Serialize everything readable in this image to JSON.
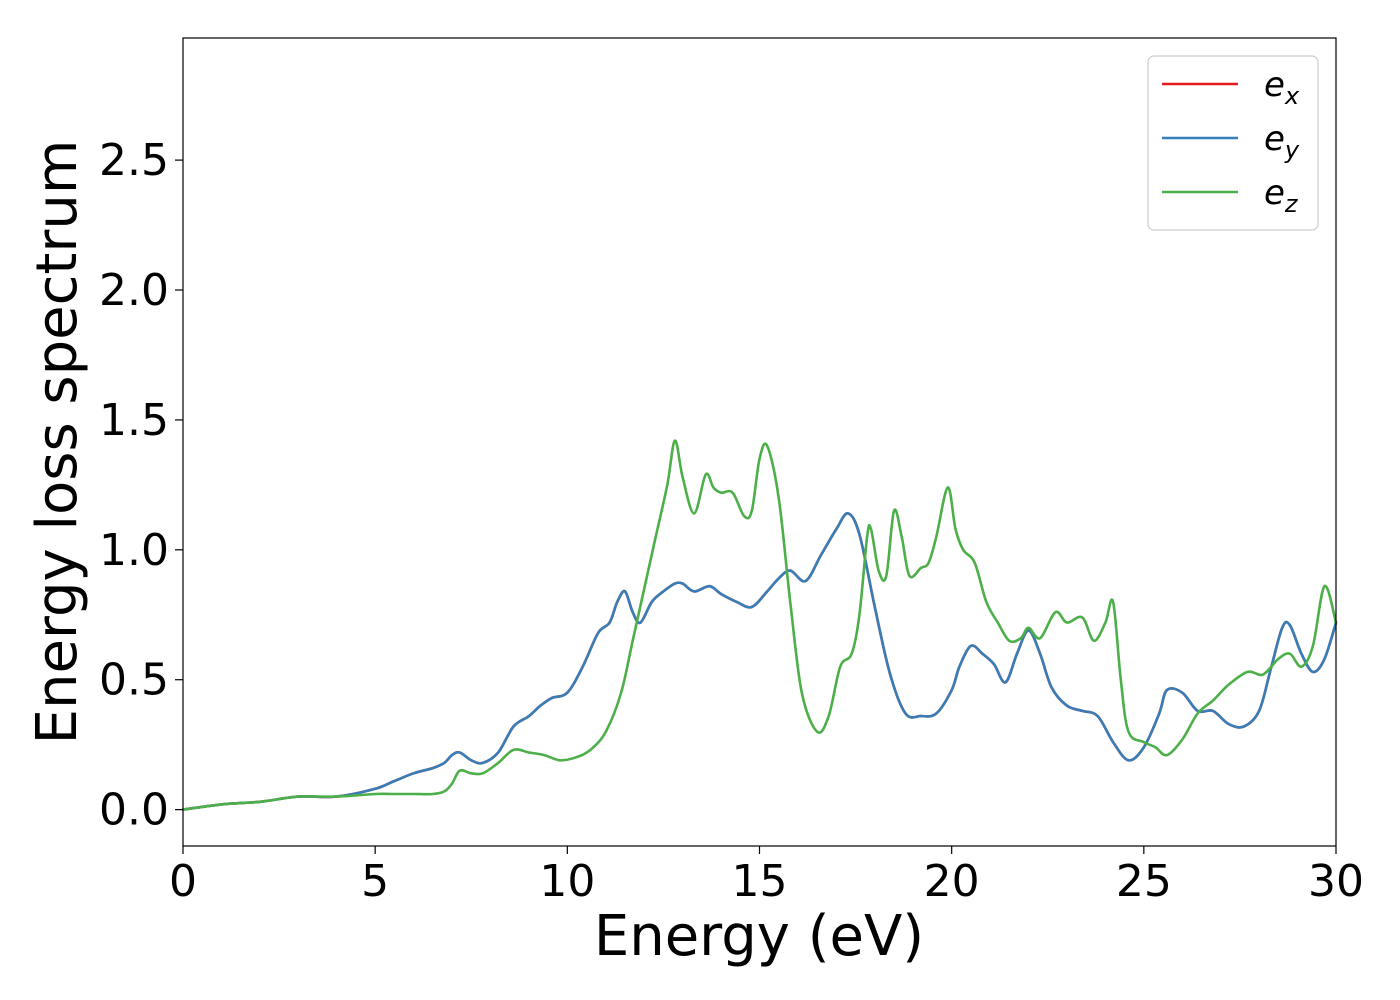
{
  "chart_data": {
    "type": "line",
    "title": "",
    "xlabel": "Energy (eV)",
    "ylabel": "Energy loss spectrum",
    "xlim": [
      0,
      30
    ],
    "ylim": [
      -0.14,
      2.97
    ],
    "xticks": [
      0,
      5,
      10,
      15,
      20,
      25,
      30
    ],
    "xtick_labels": [
      "0",
      "5",
      "10",
      "15",
      "20",
      "25",
      "30"
    ],
    "yticks": [
      0.0,
      0.5,
      1.0,
      1.5,
      2.0,
      2.5
    ],
    "ytick_labels": [
      "0.0",
      "0.5",
      "1.0",
      "1.5",
      "2.0",
      "2.5"
    ],
    "grid": false,
    "legend_position": "top-right",
    "legend": [
      {
        "base": "e",
        "sub": "x",
        "color": "#e41a1c"
      },
      {
        "base": "e",
        "sub": "y",
        "color": "#377eb8"
      },
      {
        "base": "e",
        "sub": "z",
        "color": "#4daf4a"
      }
    ],
    "series": [
      {
        "name": "e_x",
        "color": "#e41a1c",
        "x": [
          0,
          1,
          2,
          3,
          4,
          5,
          5.5,
          6,
          6.5,
          6.8,
          7.0,
          7.2,
          7.5,
          7.8,
          8.2,
          8.6,
          9.0,
          9.3,
          9.6,
          10.0,
          10.4,
          10.8,
          11.1,
          11.3,
          11.5,
          11.7,
          11.9,
          12.2,
          12.5,
          12.8,
          13.0,
          13.3,
          13.7,
          14.0,
          14.4,
          14.8,
          15.2,
          15.5,
          15.8,
          16.2,
          16.6,
          17.0,
          17.3,
          17.6,
          18.0,
          18.4,
          18.8,
          19.2,
          19.6,
          20.0,
          20.2,
          20.5,
          20.8,
          21.1,
          21.4,
          21.7,
          22.0,
          22.3,
          22.6,
          23.0,
          23.4,
          23.8,
          24.2,
          24.6,
          25.0,
          25.4,
          25.6,
          26.0,
          26.4,
          26.8,
          27.2,
          27.6,
          28.0,
          28.3,
          28.6,
          28.8,
          29.1,
          29.4,
          29.7,
          30.0
        ],
        "y": [
          0.0,
          0.02,
          0.03,
          0.05,
          0.05,
          0.08,
          0.11,
          0.14,
          0.16,
          0.18,
          0.21,
          0.22,
          0.19,
          0.18,
          0.22,
          0.32,
          0.36,
          0.4,
          0.43,
          0.45,
          0.55,
          0.68,
          0.72,
          0.8,
          0.84,
          0.76,
          0.72,
          0.8,
          0.84,
          0.87,
          0.87,
          0.84,
          0.86,
          0.83,
          0.8,
          0.78,
          0.84,
          0.89,
          0.92,
          0.88,
          0.98,
          1.08,
          1.14,
          1.06,
          0.78,
          0.52,
          0.37,
          0.36,
          0.37,
          0.46,
          0.55,
          0.63,
          0.6,
          0.56,
          0.49,
          0.6,
          0.69,
          0.6,
          0.47,
          0.4,
          0.38,
          0.36,
          0.26,
          0.19,
          0.24,
          0.37,
          0.46,
          0.45,
          0.38,
          0.38,
          0.33,
          0.32,
          0.38,
          0.54,
          0.7,
          0.71,
          0.6,
          0.53,
          0.58,
          0.72
        ]
      },
      {
        "name": "e_y",
        "color": "#377eb8",
        "x": [
          0,
          1,
          2,
          3,
          4,
          5,
          5.5,
          6,
          6.5,
          6.8,
          7.0,
          7.2,
          7.5,
          7.8,
          8.2,
          8.6,
          9.0,
          9.3,
          9.6,
          10.0,
          10.4,
          10.8,
          11.1,
          11.3,
          11.5,
          11.7,
          11.9,
          12.2,
          12.5,
          12.8,
          13.0,
          13.3,
          13.7,
          14.0,
          14.4,
          14.8,
          15.2,
          15.5,
          15.8,
          16.2,
          16.6,
          17.0,
          17.3,
          17.6,
          18.0,
          18.4,
          18.8,
          19.2,
          19.6,
          20.0,
          20.2,
          20.5,
          20.8,
          21.1,
          21.4,
          21.7,
          22.0,
          22.3,
          22.6,
          23.0,
          23.4,
          23.8,
          24.2,
          24.6,
          25.0,
          25.4,
          25.6,
          26.0,
          26.4,
          26.8,
          27.2,
          27.6,
          28.0,
          28.3,
          28.6,
          28.8,
          29.1,
          29.4,
          29.7,
          30.0
        ],
        "y": [
          0.0,
          0.02,
          0.03,
          0.05,
          0.05,
          0.08,
          0.11,
          0.14,
          0.16,
          0.18,
          0.21,
          0.22,
          0.19,
          0.18,
          0.22,
          0.32,
          0.36,
          0.4,
          0.43,
          0.45,
          0.55,
          0.68,
          0.72,
          0.8,
          0.84,
          0.76,
          0.72,
          0.8,
          0.84,
          0.87,
          0.87,
          0.84,
          0.86,
          0.83,
          0.8,
          0.78,
          0.84,
          0.89,
          0.92,
          0.88,
          0.98,
          1.08,
          1.14,
          1.06,
          0.78,
          0.52,
          0.37,
          0.36,
          0.37,
          0.46,
          0.55,
          0.63,
          0.6,
          0.56,
          0.49,
          0.6,
          0.69,
          0.6,
          0.47,
          0.4,
          0.38,
          0.36,
          0.26,
          0.19,
          0.24,
          0.37,
          0.46,
          0.45,
          0.38,
          0.38,
          0.33,
          0.32,
          0.38,
          0.54,
          0.7,
          0.71,
          0.6,
          0.53,
          0.58,
          0.72
        ]
      },
      {
        "name": "e_z",
        "color": "#4daf4a",
        "x": [
          0,
          1,
          2,
          3,
          4,
          5,
          5.5,
          6,
          6.5,
          6.8,
          7.0,
          7.2,
          7.5,
          7.8,
          8.2,
          8.6,
          9.0,
          9.4,
          9.8,
          10.2,
          10.6,
          11.0,
          11.4,
          11.7,
          12.0,
          12.3,
          12.6,
          12.8,
          13.0,
          13.3,
          13.6,
          13.8,
          14.0,
          14.3,
          14.6,
          14.8,
          15.0,
          15.2,
          15.5,
          15.8,
          16.1,
          16.5,
          16.8,
          17.1,
          17.4,
          17.6,
          17.8,
          17.9,
          18.1,
          18.3,
          18.5,
          18.7,
          18.9,
          19.2,
          19.4,
          19.6,
          19.9,
          20.1,
          20.3,
          20.6,
          20.9,
          21.2,
          21.5,
          21.8,
          22.0,
          22.3,
          22.7,
          23.0,
          23.4,
          23.7,
          24.0,
          24.2,
          24.4,
          24.6,
          25.0,
          25.3,
          25.6,
          26.0,
          26.4,
          26.8,
          27.2,
          27.7,
          28.1,
          28.5,
          28.8,
          29.1,
          29.4,
          29.7,
          30.0
        ],
        "y": [
          0.0,
          0.02,
          0.03,
          0.05,
          0.05,
          0.06,
          0.06,
          0.06,
          0.06,
          0.07,
          0.1,
          0.15,
          0.14,
          0.14,
          0.18,
          0.23,
          0.22,
          0.21,
          0.19,
          0.2,
          0.23,
          0.3,
          0.45,
          0.65,
          0.85,
          1.05,
          1.25,
          1.42,
          1.28,
          1.14,
          1.29,
          1.24,
          1.22,
          1.22,
          1.13,
          1.15,
          1.35,
          1.4,
          1.2,
          0.8,
          0.45,
          0.3,
          0.36,
          0.55,
          0.6,
          0.75,
          1.05,
          1.08,
          0.92,
          0.9,
          1.15,
          1.05,
          0.9,
          0.93,
          0.95,
          1.05,
          1.24,
          1.08,
          1.0,
          0.95,
          0.8,
          0.72,
          0.65,
          0.66,
          0.7,
          0.66,
          0.76,
          0.72,
          0.74,
          0.65,
          0.72,
          0.8,
          0.5,
          0.3,
          0.26,
          0.24,
          0.21,
          0.27,
          0.37,
          0.42,
          0.48,
          0.53,
          0.52,
          0.58,
          0.6,
          0.55,
          0.63,
          0.86,
          0.72
        ]
      }
    ]
  }
}
